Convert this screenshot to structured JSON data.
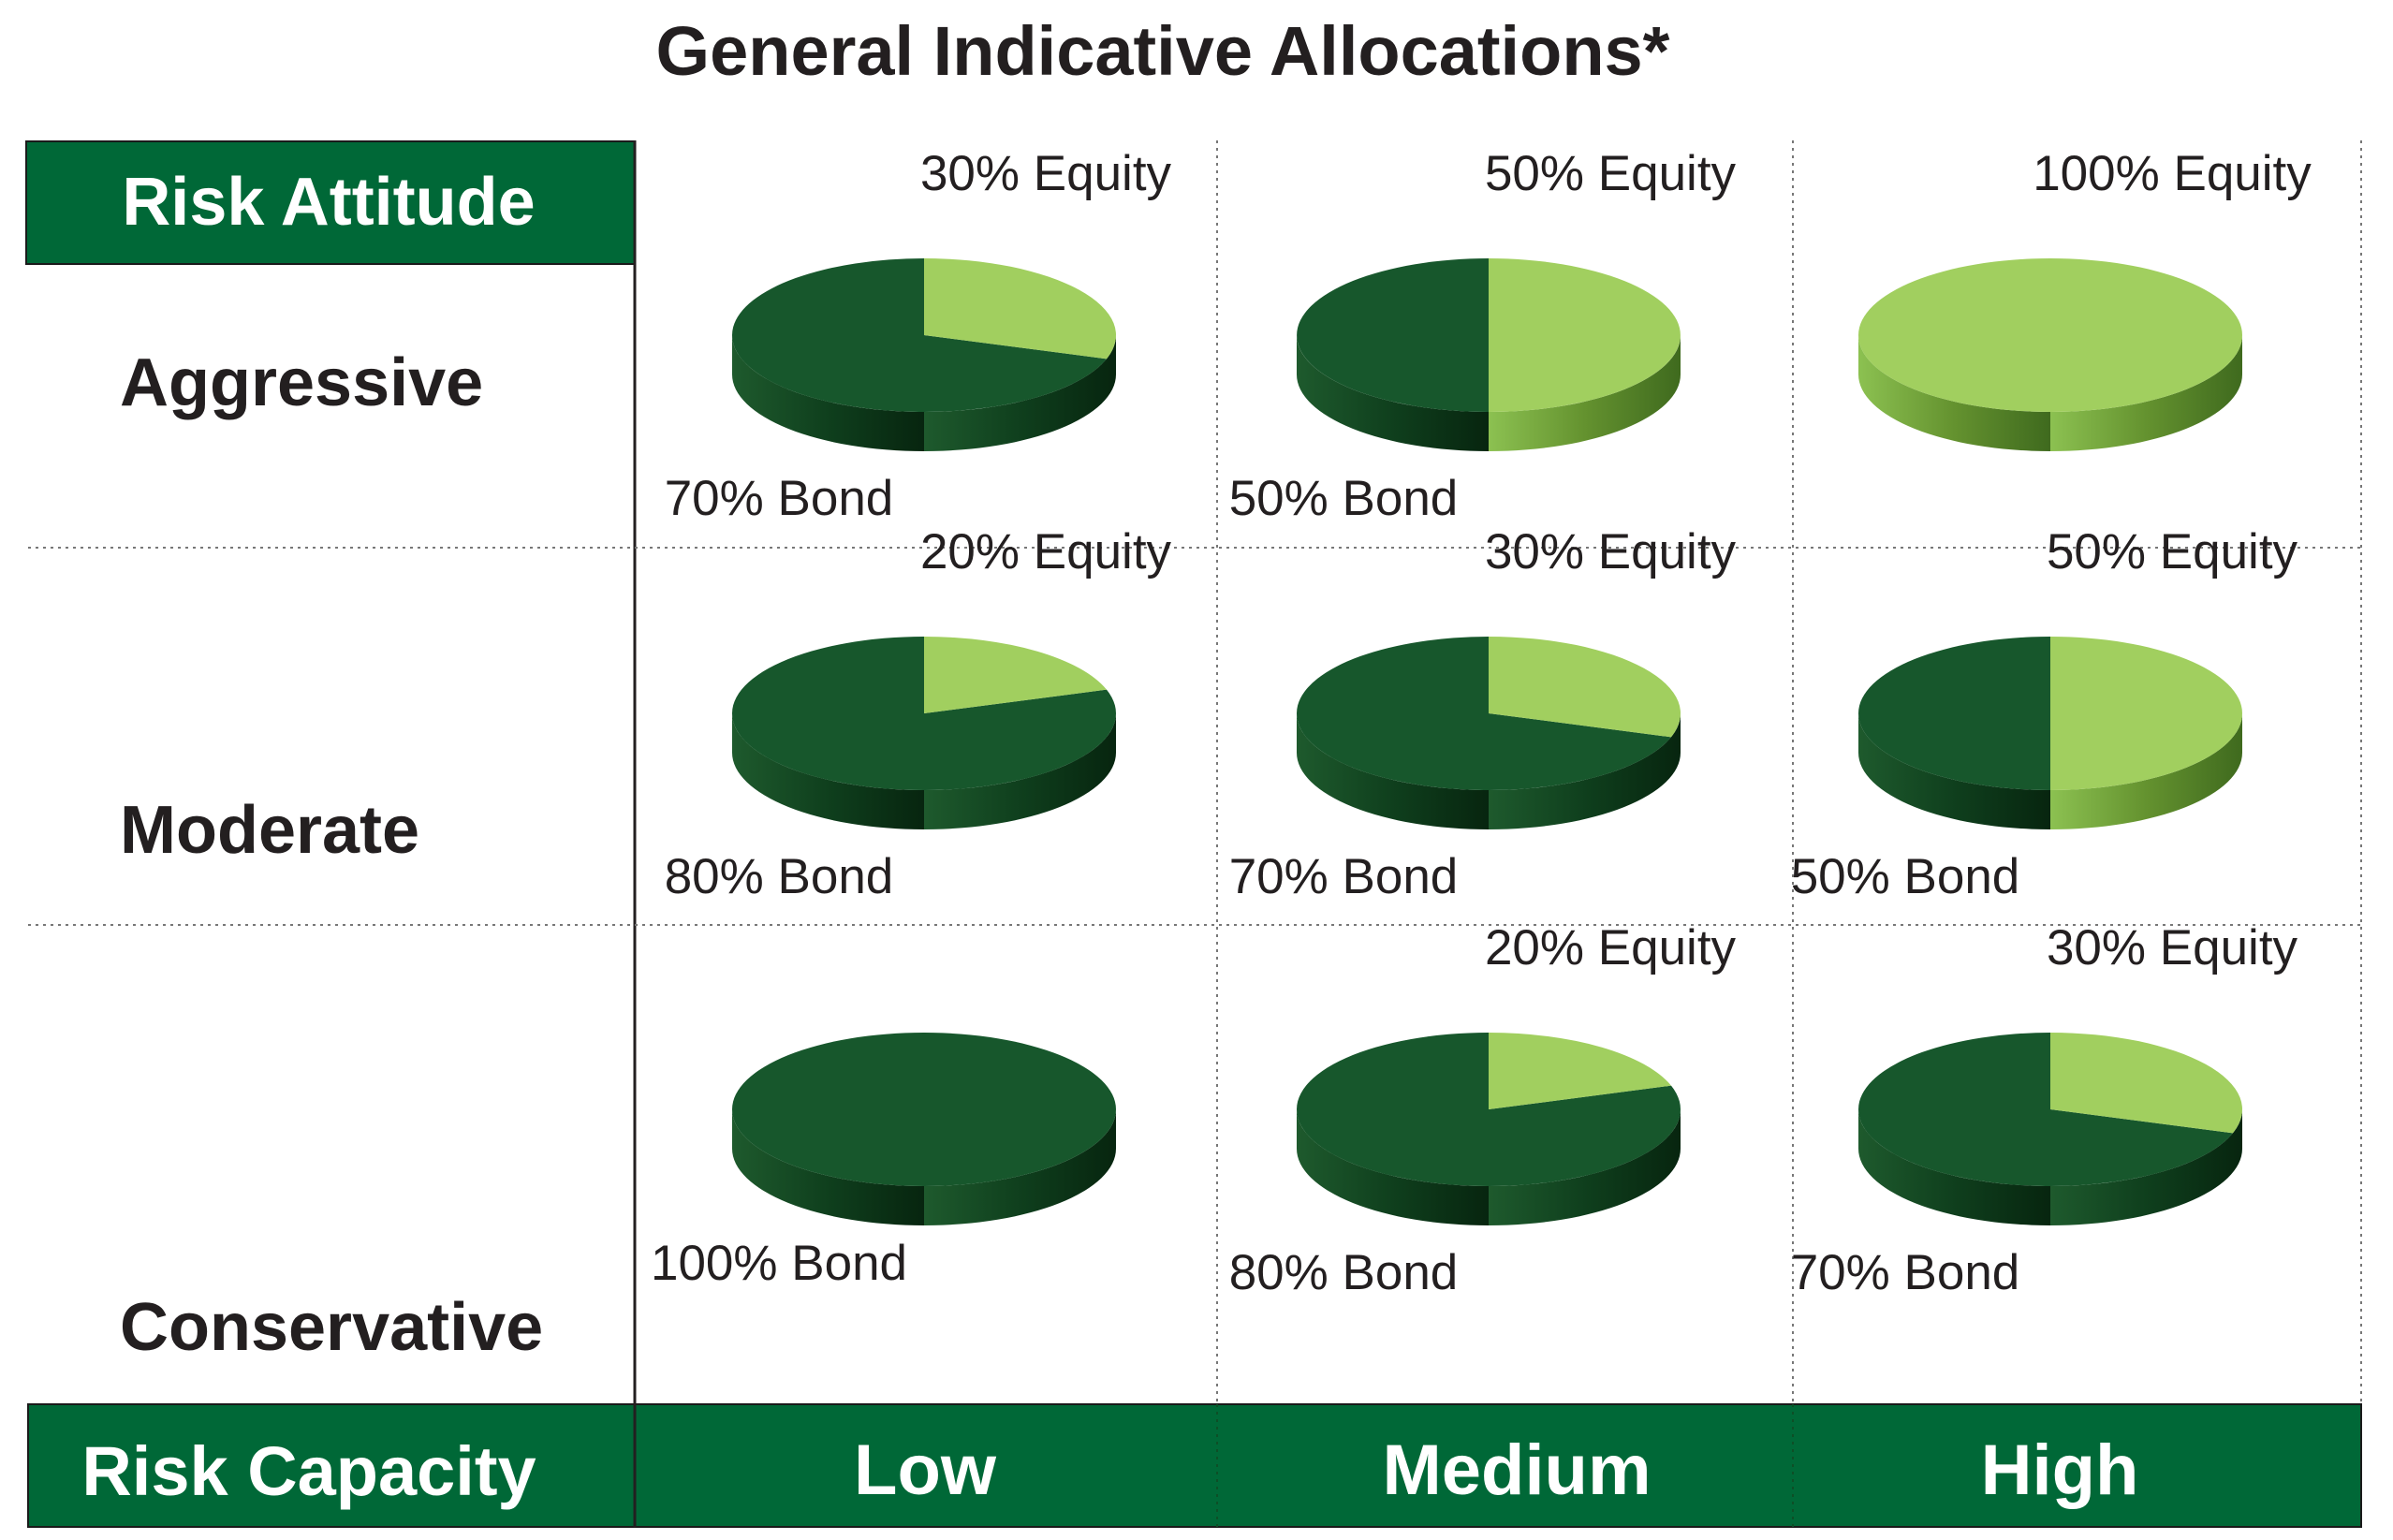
{
  "chart_data": {
    "type": "pie",
    "title": "General Indicative Allocations*",
    "y_axis_header": "Risk Attitude",
    "x_axis_header": "Risk Capacity",
    "rows": [
      "Aggressive",
      "Moderate",
      "Conservative"
    ],
    "columns": [
      "Low",
      "Medium",
      "High"
    ],
    "colors": {
      "equity": "#a1cf5f",
      "bond": "#17572c",
      "header": "#006837"
    },
    "cells": [
      {
        "row": "Aggressive",
        "column": "Low",
        "equity": 30,
        "bond": 70,
        "equity_label": "30% Equity",
        "bond_label": "70% Bond"
      },
      {
        "row": "Aggressive",
        "column": "Medium",
        "equity": 50,
        "bond": 50,
        "equity_label": "50% Equity",
        "bond_label": "50% Bond"
      },
      {
        "row": "Aggressive",
        "column": "High",
        "equity": 100,
        "bond": 0,
        "equity_label": "100% Equity",
        "bond_label": ""
      },
      {
        "row": "Moderate",
        "column": "Low",
        "equity": 20,
        "bond": 80,
        "equity_label": "20% Equity",
        "bond_label": "80% Bond"
      },
      {
        "row": "Moderate",
        "column": "Medium",
        "equity": 30,
        "bond": 70,
        "equity_label": "30% Equity",
        "bond_label": "70% Bond"
      },
      {
        "row": "Moderate",
        "column": "High",
        "equity": 50,
        "bond": 50,
        "equity_label": "50% Equity",
        "bond_label": "50% Bond"
      },
      {
        "row": "Conservative",
        "column": "Low",
        "equity": 0,
        "bond": 100,
        "equity_label": "",
        "bond_label": "100% Bond"
      },
      {
        "row": "Conservative",
        "column": "Medium",
        "equity": 20,
        "bond": 80,
        "equity_label": "20% Equity",
        "bond_label": "80% Bond"
      },
      {
        "row": "Conservative",
        "column": "High",
        "equity": 30,
        "bond": 70,
        "equity_label": "30% Equity",
        "bond_label": "70% Bond"
      }
    ]
  }
}
